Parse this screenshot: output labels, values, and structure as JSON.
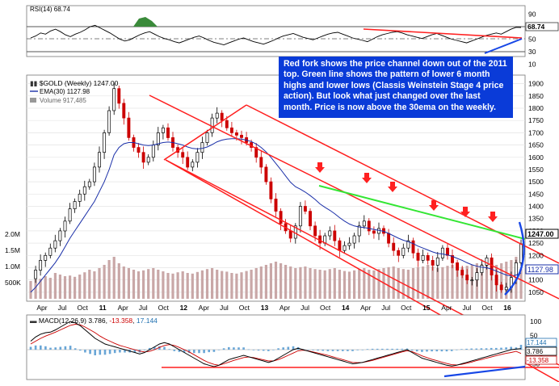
{
  "chart_data": [
    {
      "type": "line",
      "panel": "rsi",
      "header": "RSI(14) 68.74",
      "y_ticks": [
        "90",
        "70",
        "50",
        "30",
        "10"
      ],
      "ylim": [
        10,
        90
      ],
      "reference_lines": [
        70,
        50,
        30
      ],
      "last_value": 68.74,
      "last_value_label": "68.74",
      "values": [
        52,
        55,
        60,
        58,
        63,
        66,
        62,
        57,
        54,
        58,
        61,
        65,
        70,
        72,
        68,
        64,
        60,
        55,
        50,
        47,
        49,
        53,
        57,
        60,
        62,
        58,
        54,
        51,
        49,
        46,
        44,
        47,
        50,
        53,
        55,
        52,
        48,
        45,
        43,
        41,
        44,
        47,
        50,
        52,
        49,
        46,
        44,
        42,
        45,
        48,
        52,
        55,
        57,
        59,
        56,
        53,
        51,
        49,
        52,
        55,
        58,
        60,
        61,
        58,
        55,
        52,
        50,
        48,
        46,
        50,
        54,
        57,
        59,
        61,
        62,
        60,
        57,
        55,
        53,
        51,
        54,
        57,
        59,
        56,
        53,
        50,
        48,
        46,
        44,
        47,
        50,
        53,
        56,
        58,
        60,
        58,
        62,
        66,
        69,
        68.74
      ]
    },
    {
      "type": "line",
      "panel": "price",
      "header": "$GOLD (Weekly) 1247.00",
      "legend": [
        "EMA(30) 1127.98",
        "Volume 917,485"
      ],
      "y_ticks": [
        "1900",
        "1850",
        "1800",
        "1750",
        "1700",
        "1650",
        "1600",
        "1550",
        "1500",
        "1450",
        "1400",
        "1350",
        "1300",
        "1250",
        "1200",
        "1150",
        "1100",
        "1050"
      ],
      "ylim": [
        1020,
        1925
      ],
      "volume_ticks": [
        "2.0M",
        "1.5M",
        "1.0M",
        "500K"
      ],
      "x_ticks": [
        "Apr",
        "Jul",
        "Oct",
        "11",
        "Apr",
        "Jul",
        "Oct",
        "12",
        "Apr",
        "Jul",
        "Oct",
        "13",
        "Apr",
        "Jul",
        "Oct",
        "14",
        "Apr",
        "Jul",
        "Oct",
        "15",
        "Apr",
        "Jul",
        "Oct",
        "16"
      ],
      "x_bold_ticks": [
        "11",
        "12",
        "13",
        "14",
        "15",
        "16"
      ],
      "last_price_label": "1247.00",
      "last_ema_label": "1127.98",
      "colors": {
        "up": "#000000",
        "down": "#cc0000",
        "ema": "#1a2fa8",
        "channel": "#ff1e1e",
        "trendline": "#33e633",
        "arrow": "#ff2020",
        "arc": "#1747e6"
      },
      "price_series": [
        1105,
        1140,
        1180,
        1200,
        1230,
        1260,
        1300,
        1340,
        1390,
        1420,
        1450,
        1480,
        1500,
        1560,
        1620,
        1700,
        1790,
        1880,
        1820,
        1760,
        1680,
        1640,
        1620,
        1580,
        1600,
        1650,
        1700,
        1720,
        1680,
        1640,
        1620,
        1600,
        1560,
        1580,
        1620,
        1660,
        1700,
        1760,
        1780,
        1750,
        1720,
        1700,
        1690,
        1680,
        1660,
        1640,
        1600,
        1560,
        1500,
        1430,
        1380,
        1330,
        1300,
        1270,
        1320,
        1400,
        1380,
        1320,
        1280,
        1250,
        1280,
        1300,
        1260,
        1220,
        1240,
        1250,
        1280,
        1320,
        1340,
        1300,
        1290,
        1310,
        1290,
        1250,
        1220,
        1200,
        1230,
        1260,
        1210,
        1180,
        1200,
        1180,
        1160,
        1190,
        1230,
        1200,
        1170,
        1140,
        1120,
        1100,
        1100,
        1130,
        1160,
        1190,
        1120,
        1080,
        1060,
        1070,
        1110,
        1170,
        1247
      ],
      "ema_series": [
        1050,
        1070,
        1095,
        1120,
        1145,
        1170,
        1200,
        1235,
        1270,
        1300,
        1330,
        1360,
        1390,
        1420,
        1460,
        1500,
        1550,
        1610,
        1640,
        1655,
        1660,
        1660,
        1655,
        1650,
        1648,
        1650,
        1655,
        1660,
        1662,
        1660,
        1655,
        1650,
        1642,
        1636,
        1634,
        1636,
        1642,
        1652,
        1663,
        1670,
        1674,
        1676,
        1676,
        1674,
        1670,
        1664,
        1654,
        1640,
        1622,
        1600,
        1575,
        1550,
        1524,
        1498,
        1480,
        1470,
        1458,
        1444,
        1428,
        1410,
        1396,
        1384,
        1370,
        1354,
        1340,
        1328,
        1320,
        1316,
        1314,
        1310,
        1306,
        1302,
        1298,
        1290,
        1280,
        1270,
        1262,
        1256,
        1248,
        1238,
        1230,
        1222,
        1214,
        1208,
        1206,
        1202,
        1196,
        1188,
        1180,
        1170,
        1162,
        1156,
        1152,
        1150,
        1144,
        1136,
        1128,
        1120,
        1116,
        1120,
        1128
      ],
      "volume_series": [
        0.55,
        0.6,
        0.62,
        0.7,
        0.65,
        0.8,
        0.75,
        0.7,
        0.72,
        0.68,
        0.75,
        0.82,
        0.9,
        0.85,
        0.95,
        1.05,
        1.2,
        1.3,
        1.1,
        1.0,
        0.95,
        0.9,
        0.85,
        0.88,
        0.92,
        0.95,
        0.9,
        0.85,
        0.8,
        0.78,
        0.82,
        0.85,
        0.8,
        0.78,
        0.83,
        0.88,
        0.92,
        0.95,
        0.9,
        0.86,
        0.84,
        0.8,
        0.78,
        0.82,
        0.86,
        0.9,
        0.95,
        1.0,
        1.05,
        1.1,
        1.15,
        1.1,
        1.05,
        1.0,
        0.95,
        0.98,
        1.0,
        0.95,
        0.92,
        0.9,
        0.88,
        0.92,
        0.95,
        0.9,
        0.86,
        0.84,
        0.88,
        0.92,
        0.95,
        0.9,
        0.88,
        0.92,
        0.95,
        0.98,
        1.0,
        0.95,
        0.92,
        0.9,
        0.95,
        0.98,
        1.0,
        1.05,
        1.0,
        0.95,
        0.98,
        1.02,
        1.05,
        1.0,
        0.98,
        1.02,
        1.05,
        1.1,
        1.08,
        1.05,
        1.02,
        1.05,
        1.1,
        1.15,
        1.2,
        1.3,
        0.92
      ]
    },
    {
      "type": "line",
      "panel": "macd",
      "header_name": "MACD(12,26,9)",
      "header_macd": "3.786",
      "header_signal": "-13.358",
      "header_hist": "17.144",
      "y_ticks": [
        "100",
        "50",
        "0",
        "-50"
      ],
      "ylim": [
        -60,
        110
      ],
      "value_labels": [
        "17.144",
        "3.786",
        "-13.358"
      ],
      "macd_series": [
        30,
        45,
        55,
        60,
        62,
        70,
        80,
        90,
        100,
        95,
        85,
        70,
        55,
        40,
        30,
        20,
        15,
        10,
        5,
        0,
        -5,
        -10,
        -15,
        -10,
        0,
        10,
        20,
        25,
        20,
        10,
        0,
        -10,
        -20,
        -30,
        -40,
        -50,
        -55,
        -60,
        -55,
        -45,
        -35,
        -30,
        -25,
        -20,
        -25,
        -30,
        -35,
        -40,
        -45,
        -40,
        -30,
        -20,
        -10,
        0,
        5,
        0,
        -5,
        -10,
        -15,
        -20,
        -25,
        -30,
        -35,
        -40,
        -45,
        -50,
        -48,
        -45,
        -40,
        -35,
        -30,
        -25,
        -20,
        -15,
        -10,
        -5,
        0,
        -10,
        -20,
        -30,
        -35,
        -40,
        -45,
        -50,
        -55,
        -58,
        -55,
        -50,
        -45,
        -40,
        -35,
        -30,
        -25,
        -20,
        -15,
        -10,
        -5,
        0,
        2,
        3.786
      ],
      "signal_series": [
        20,
        30,
        40,
        48,
        55,
        62,
        70,
        78,
        86,
        90,
        88,
        80,
        70,
        60,
        48,
        38,
        30,
        22,
        15,
        10,
        5,
        0,
        -5,
        -8,
        -6,
        0,
        8,
        15,
        18,
        15,
        8,
        0,
        -8,
        -18,
        -28,
        -38,
        -46,
        -52,
        -55,
        -50,
        -44,
        -38,
        -33,
        -28,
        -26,
        -28,
        -32,
        -36,
        -40,
        -40,
        -35,
        -28,
        -20,
        -12,
        -4,
        -2,
        -4,
        -8,
        -12,
        -16,
        -20,
        -25,
        -30,
        -35,
        -40,
        -45,
        -46,
        -45,
        -42,
        -38,
        -33,
        -28,
        -23,
        -18,
        -13,
        -8,
        -4,
        -7,
        -14,
        -22,
        -28,
        -34,
        -39,
        -44,
        -49,
        -53,
        -54,
        -52,
        -48,
        -44,
        -39,
        -35,
        -30,
        -26,
        -21,
        -17,
        -13,
        -10,
        -6,
        -13.358
      ]
    }
  ],
  "note": {
    "text": "Red fork shows the price channel down out of the 2011 top. Green line shows the pattern of lower 6 month highs and lower lows (Classis Weinstein Stage 4 price action).  But look what just changed over the last month. Price is now above the 30ema on the weekly."
  }
}
